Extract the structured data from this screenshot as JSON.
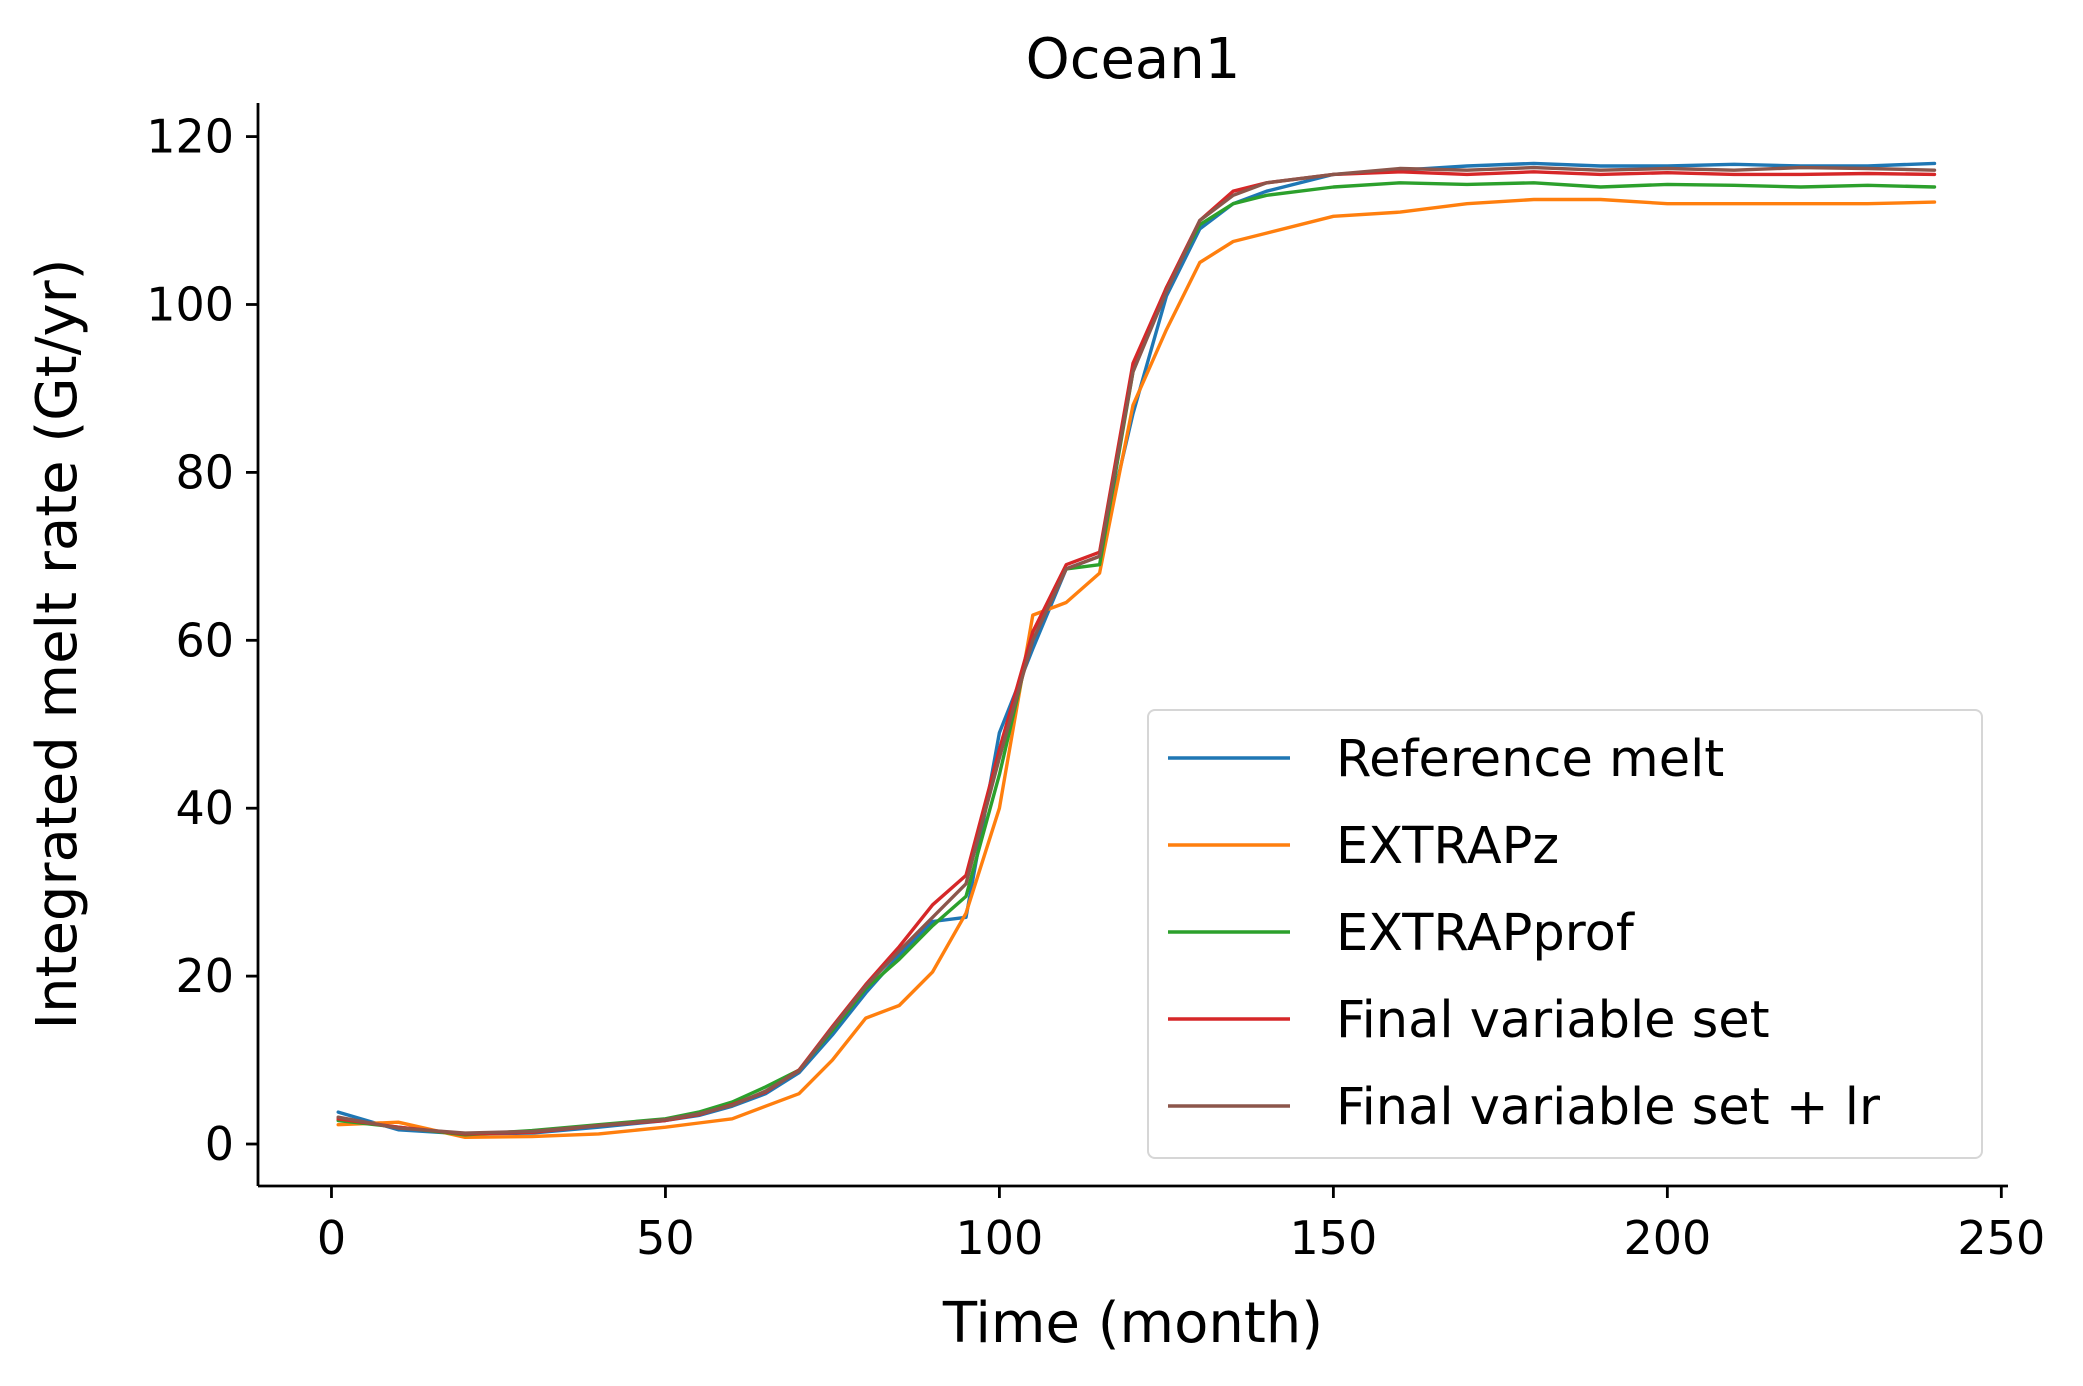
{
  "chart_data": {
    "type": "line",
    "title": "Ocean1",
    "xlabel": "Time (month)",
    "ylabel": "Integrated melt rate (Gt/yr)",
    "xlim": [
      -11,
      251
    ],
    "ylim": [
      -5,
      124
    ],
    "xticks": [
      0,
      50,
      100,
      150,
      200,
      250
    ],
    "yticks": [
      0,
      20,
      40,
      60,
      80,
      100,
      120
    ],
    "grid": false,
    "legend_position": "lower-right",
    "x": [
      1,
      10,
      20,
      30,
      40,
      50,
      55,
      60,
      65,
      70,
      75,
      80,
      85,
      90,
      95,
      100,
      105,
      110,
      115,
      120,
      125,
      130,
      135,
      140,
      150,
      160,
      170,
      180,
      190,
      200,
      210,
      220,
      230,
      240
    ],
    "series": [
      {
        "name": "Reference melt",
        "color": "#1f77b4",
        "values": [
          3.8,
          1.7,
          1.2,
          1.3,
          2.0,
          2.8,
          3.4,
          4.5,
          6.0,
          8.5,
          13.0,
          18.0,
          22.5,
          26.5,
          27.0,
          49.0,
          59.0,
          68.5,
          70.0,
          87.0,
          101.0,
          109.0,
          112.0,
          113.5,
          115.5,
          116.0,
          116.5,
          116.8,
          116.5,
          116.5,
          116.7,
          116.5,
          116.5,
          116.8
        ]
      },
      {
        "name": "EXTRAPz",
        "color": "#ff7f0e",
        "values": [
          2.3,
          2.6,
          0.8,
          0.9,
          1.2,
          2.0,
          2.5,
          3.0,
          4.5,
          6.0,
          10.0,
          15.0,
          16.5,
          20.5,
          27.5,
          40.0,
          63.0,
          64.5,
          68.0,
          88.0,
          97.0,
          105.0,
          107.5,
          108.5,
          110.5,
          111.0,
          112.0,
          112.5,
          112.5,
          112.0,
          112.0,
          112.0,
          112.0,
          112.2
        ]
      },
      {
        "name": "EXTRAPprof",
        "color": "#2ca02c",
        "values": [
          2.8,
          2.0,
          1.1,
          1.6,
          2.3,
          3.0,
          3.8,
          5.0,
          6.8,
          8.8,
          13.5,
          18.5,
          22.0,
          26.0,
          29.5,
          44.0,
          61.0,
          68.5,
          69.0,
          92.0,
          102.0,
          109.5,
          112.0,
          113.0,
          114.0,
          114.5,
          114.3,
          114.5,
          114.0,
          114.3,
          114.2,
          114.0,
          114.2,
          114.0
        ]
      },
      {
        "name": "Final variable set",
        "color": "#d62728",
        "values": [
          3.0,
          2.0,
          1.2,
          1.4,
          2.2,
          2.8,
          3.5,
          4.7,
          6.2,
          8.8,
          14.0,
          19.0,
          23.5,
          28.5,
          32.0,
          47.0,
          61.0,
          69.0,
          70.5,
          93.0,
          102.0,
          110.0,
          113.5,
          114.5,
          115.5,
          115.8,
          115.5,
          115.8,
          115.5,
          115.7,
          115.5,
          115.5,
          115.6,
          115.5
        ]
      },
      {
        "name": "Final variable set + lr",
        "color": "#8c564b",
        "values": [
          3.2,
          1.9,
          1.3,
          1.5,
          2.2,
          2.9,
          3.6,
          4.6,
          6.3,
          8.7,
          13.8,
          18.8,
          23.0,
          27.0,
          31.0,
          46.0,
          60.0,
          68.5,
          70.0,
          92.0,
          101.5,
          110.0,
          113.0,
          114.5,
          115.5,
          116.2,
          116.0,
          116.3,
          116.0,
          116.2,
          116.0,
          116.3,
          116.2,
          116.0
        ]
      }
    ]
  }
}
